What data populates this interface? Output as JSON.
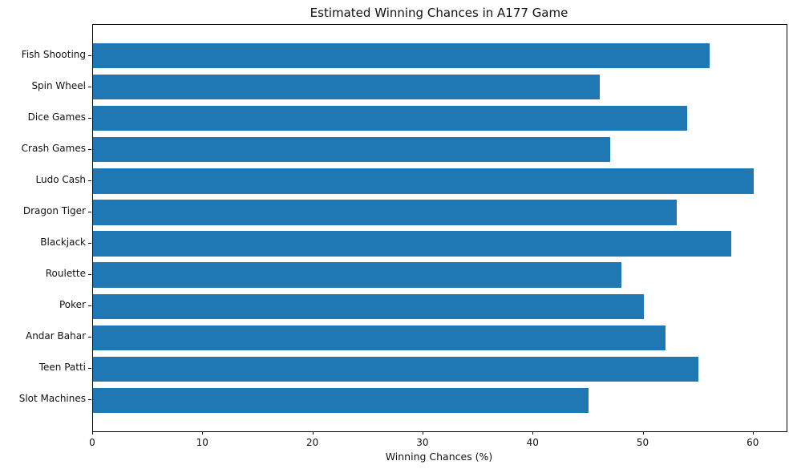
{
  "chart_data": {
    "type": "bar",
    "orientation": "horizontal",
    "title": "Estimated Winning Chances in A177 Game",
    "xlabel": "Winning Chances (%)",
    "ylabel": "",
    "categories": [
      "Fish Shooting",
      "Spin Wheel",
      "Dice Games",
      "Crash Games",
      "Ludo Cash",
      "Dragon Tiger",
      "Blackjack",
      "Roulette",
      "Poker",
      "Andar Bahar",
      "Teen Patti",
      "Slot Machines"
    ],
    "values": [
      56,
      46,
      54,
      47,
      60,
      53,
      58,
      48,
      50,
      52,
      55,
      45
    ],
    "xticks": [
      0,
      10,
      20,
      30,
      40,
      50,
      60
    ],
    "xlim": [
      0,
      63
    ],
    "bar_color": "#1f77b4",
    "grid": false,
    "legend_position": "none",
    "background_color": "#ffffff",
    "spine_color": "#000000"
  }
}
